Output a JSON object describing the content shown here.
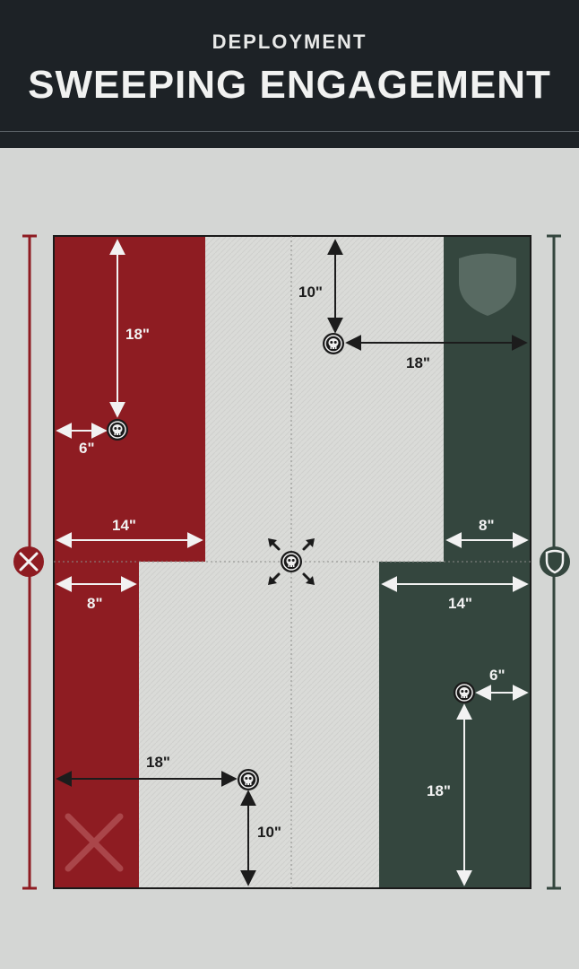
{
  "header": {
    "subtitle": "DEPLOYMENT",
    "title": "SWEEPING ENGAGEMENT"
  },
  "colors": {
    "attacker": "#8e1c22",
    "defender": "#34463e",
    "no_mans_land": "#dadbd8",
    "header_bg": "#1d2226"
  },
  "icons": {
    "attacker": "crossed-swords-icon",
    "defender": "shield-icon",
    "objective": "skull-icon",
    "center_objective": "skull-arrows-icon"
  },
  "measurements": {
    "top_objective_from_top": "10\"",
    "top_objective_from_right": "18\"",
    "left_objective_from_top": "18\"",
    "left_objective_from_left": "6\"",
    "attacker_upper_depth": "14\"",
    "attacker_lower_depth": "8\"",
    "defender_upper_depth": "8\"",
    "defender_lower_depth": "14\"",
    "right_objective_from_right": "6\"",
    "right_objective_from_bottom": "18\"",
    "bottom_objective_from_left": "18\"",
    "bottom_objective_from_bottom": "10\""
  }
}
